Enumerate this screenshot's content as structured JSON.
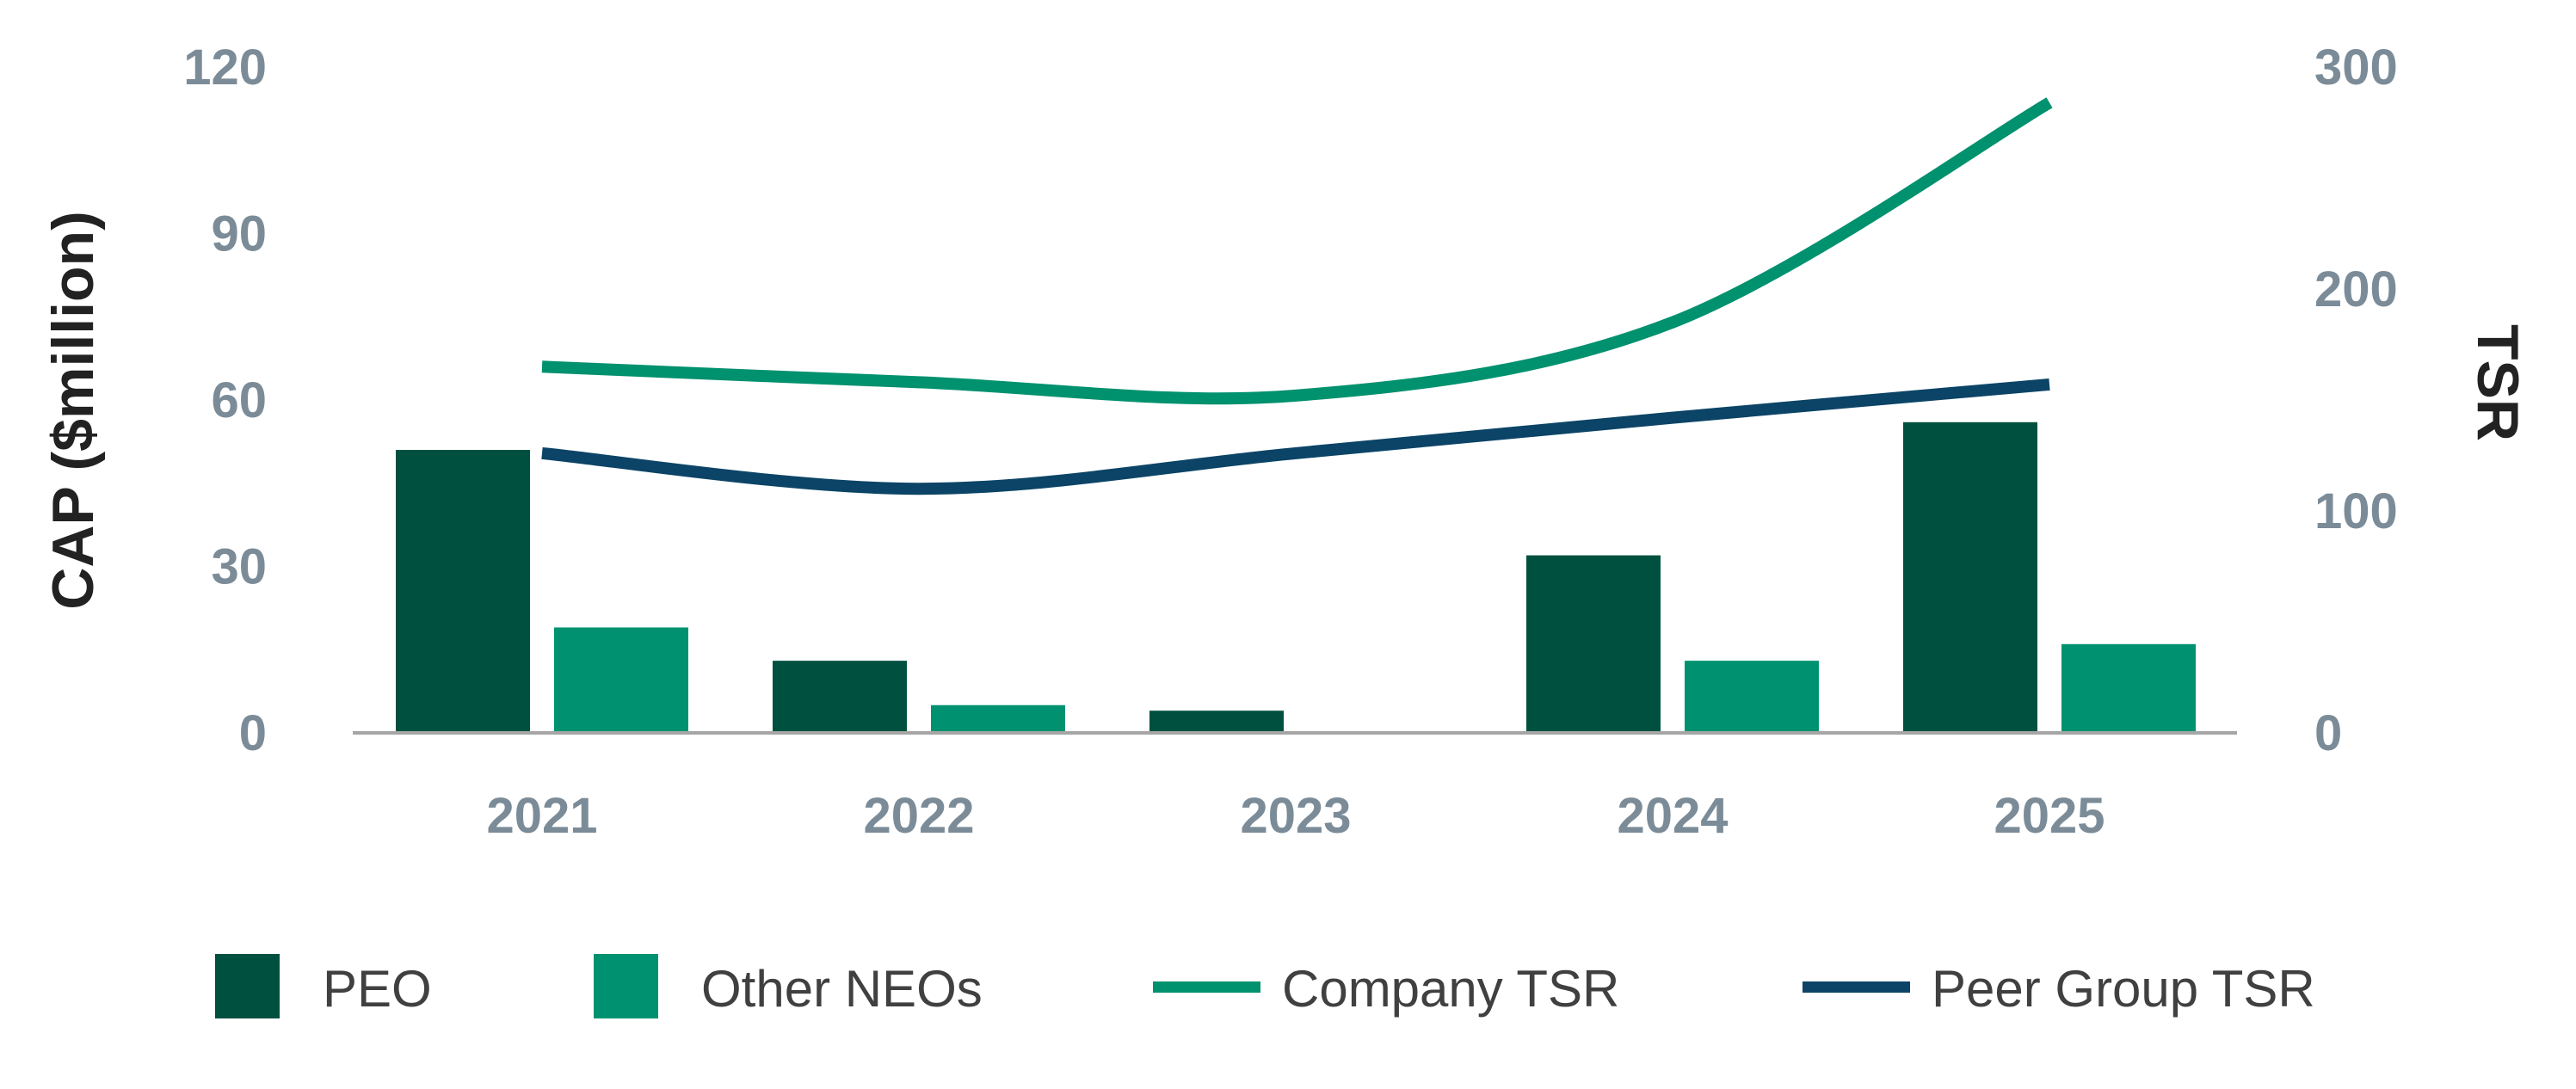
{
  "chart_data": {
    "type": "bar",
    "categories": [
      "2021",
      "2022",
      "2023",
      "2024",
      "2025"
    ],
    "bar_series": [
      {
        "name": "PEO",
        "color": "#00503f",
        "values": [
          51,
          13,
          4,
          32,
          56
        ]
      },
      {
        "name": "Other NEOs",
        "color": "#009270",
        "values": [
          19,
          5,
          null,
          13,
          16
        ]
      }
    ],
    "line_series": [
      {
        "name": "Company TSR",
        "color": "#00916e",
        "values": [
          165,
          158,
          152,
          185,
          284
        ]
      },
      {
        "name": "Peer Group TSR",
        "color": "#0b4466",
        "values": [
          126,
          110,
          126,
          142,
          157
        ]
      }
    ],
    "y_left": {
      "label": "CAP ($million)",
      "min": 0,
      "max": 120,
      "ticks": [
        "0",
        "30",
        "60",
        "90",
        "120"
      ]
    },
    "y_right": {
      "label": "TSR",
      "min": 0,
      "max": 300,
      "ticks": [
        "0",
        "100",
        "200",
        "300"
      ]
    },
    "xlabel": "",
    "grid": false,
    "legend": {
      "position": "bottom",
      "items": [
        {
          "label": "PEO",
          "kind": "bar",
          "color": "#00503f"
        },
        {
          "label": "Other NEOs",
          "kind": "bar",
          "color": "#009270"
        },
        {
          "label": "Company TSR",
          "kind": "line",
          "color": "#00916e"
        },
        {
          "label": "Peer Group TSR",
          "kind": "line",
          "color": "#0b4466"
        }
      ]
    }
  }
}
